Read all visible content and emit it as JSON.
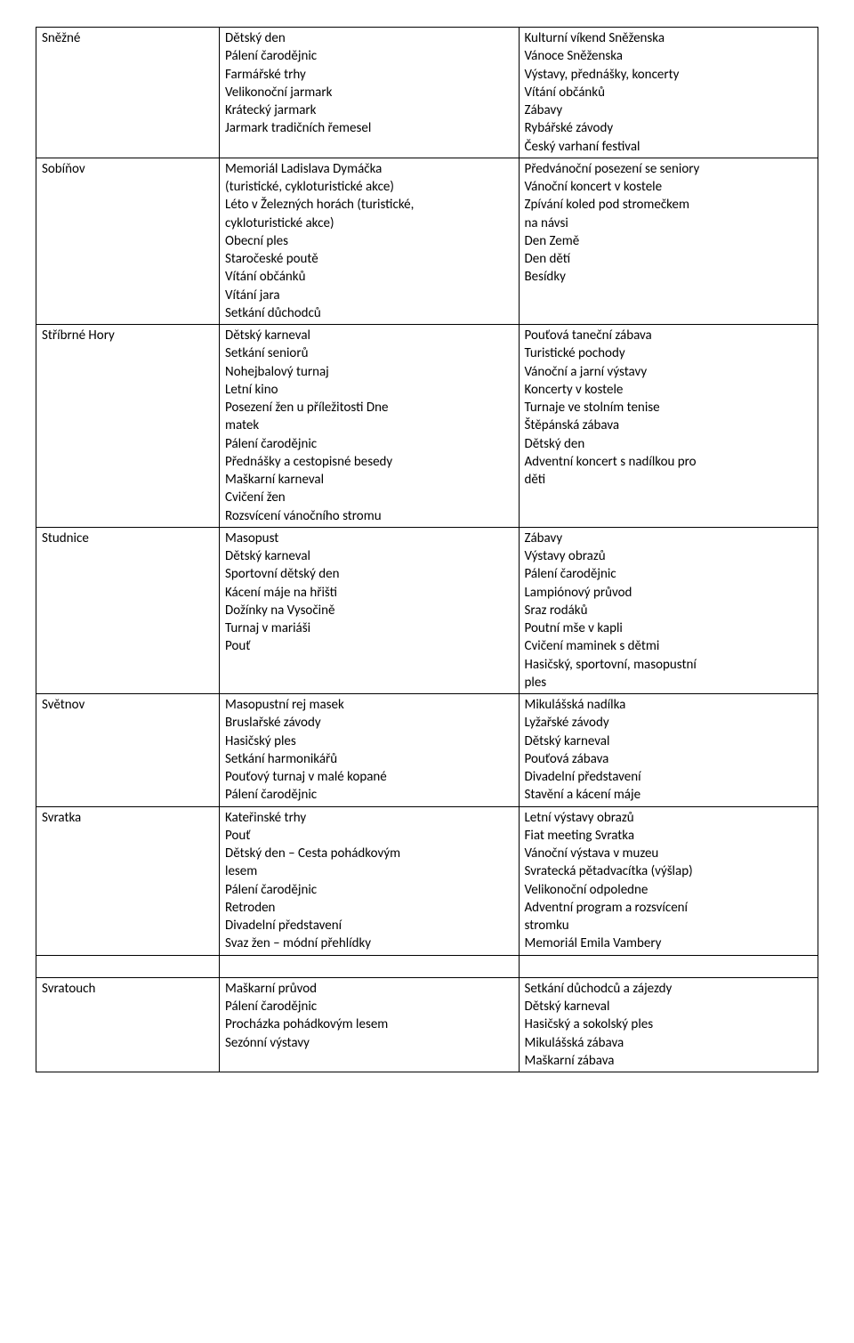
{
  "rows": [
    {
      "name": "Sněžné",
      "col2": [
        "Dětský den",
        "Pálení čarodějnic",
        "Farmářské trhy",
        "Velikonoční jarmark",
        "Krátecký jarmark",
        "Jarmark tradičních řemesel"
      ],
      "col3": [
        "Kulturní víkend Sněženska",
        "Vánoce Sněženska",
        "Výstavy, přednášky, koncerty",
        "Vítání občánků",
        "Zábavy",
        "Rybářské závody",
        "Český varhaní festival"
      ]
    },
    {
      "name": "Sobíňov",
      "col2": [
        "Memoriál Ladislava Dymáčka",
        "(turistické, cykloturistické akce)",
        "Léto v Železných horách (turistické,",
        "cykloturistické akce)",
        "Obecní ples",
        "Staročeské poutě",
        "Vítání občánků",
        "Vítání jara",
        " Setkání důchodců"
      ],
      "col3": [
        "Předvánoční posezení se seniory",
        "Vánoční koncert v kostele",
        "Zpívání koled pod stromečkem",
        "na návsi",
        "Den Země",
        "Den dětí",
        "Besídky"
      ]
    },
    {
      "name": "Stříbrné Hory",
      "col2": [
        "Dětský karneval",
        "Setkání seniorů",
        "Nohejbalový turnaj",
        "Letní kino",
        "Posezení žen u příležitosti Dne",
        "matek",
        "Pálení čarodějnic",
        "Přednášky a cestopisné besedy",
        "Maškarní karneval",
        "Cvičení žen",
        "Rozsvícení vánočního stromu"
      ],
      "col3": [
        "Pouťová taneční zábava",
        "Turistické pochody",
        "Vánoční a jarní výstavy",
        "Koncerty v kostele",
        "Turnaje ve stolním tenise",
        "Štěpánská zábava",
        "Dětský den",
        "Adventní koncert s nadílkou pro",
        "děti"
      ]
    },
    {
      "name": "Studnice",
      "col2": [
        "Masopust",
        "Dětský karneval",
        "Sportovní dětský den",
        "Kácení máje na hřišti",
        "Dožínky na Vysočině",
        "Turnaj v mariáši",
        "Pouť"
      ],
      "col3": [
        "Zábavy",
        "Výstavy obrazů",
        "Pálení čarodějnic",
        "Lampiónový průvod",
        "Sraz rodáků",
        "Poutní mše v kapli",
        "Cvičení maminek s dětmi",
        "Hasičský,  sportovní,  masopustní",
        "ples"
      ],
      "col3_justify": [
        false,
        false,
        false,
        false,
        false,
        false,
        false,
        true,
        false
      ]
    },
    {
      "name": "Světnov",
      "col2": [
        "Masopustní rej masek",
        "Bruslařské závody",
        "Hasičský ples",
        "Setkání harmonikářů",
        "Pouťový turnaj v malé kopané",
        "Pálení čarodějnic"
      ],
      "col3": [
        "Mikulášská nadílka",
        "Lyžařské závody",
        "Dětský karneval",
        "Pouťová zábava",
        "Divadelní představení",
        "Stavění a kácení máje"
      ]
    },
    {
      "name": "Svratka",
      "col2": [
        "Kateřinské trhy",
        "Pouť",
        "Dětský den – Cesta pohádkovým",
        "lesem",
        "Pálení čarodějnic",
        "Retroden",
        "Divadelní představení",
        "Svaz žen – módní přehlídky"
      ],
      "col3": [
        "Letní výstavy obrazů",
        "Fiat meeting Svratka",
        "Vánoční výstava v muzeu",
        "Svratecká pětadvacítka (výšlap)",
        "Velikonoční odpoledne",
        "Adventní  program  a  rozsvícení",
        "stromku",
        "Memoriál Emila Vambery"
      ],
      "col3_justify": [
        false,
        false,
        false,
        false,
        false,
        true,
        false,
        false
      ]
    },
    {
      "spacer": true
    },
    {
      "name": "Svratouch",
      "col2": [
        "Maškarní průvod",
        "Pálení čarodějnic",
        "Procházka pohádkovým lesem",
        "Sezónní výstavy"
      ],
      "col3": [
        "Setkání důchodců a zájezdy",
        "Dětský karneval",
        "Hasičský a sokolský ples",
        "Mikulášská zábava",
        "Maškarní zábava"
      ]
    }
  ]
}
